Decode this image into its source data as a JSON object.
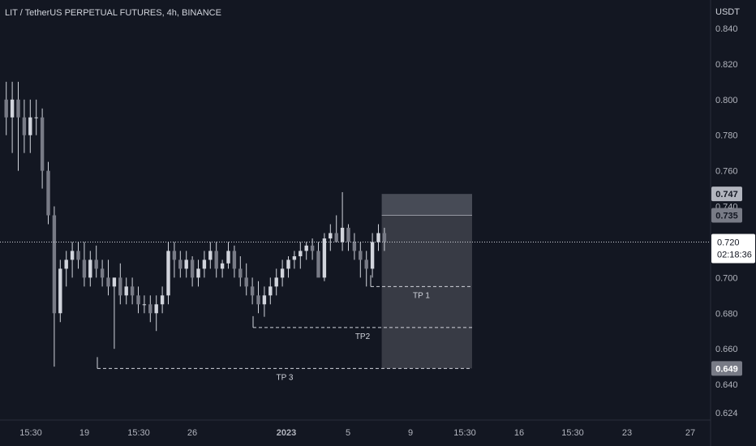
{
  "chart_data": {
    "type": "candlestick",
    "title": "LIT / TetherUS PERPETUAL FUTURES, 4h, BINANCE",
    "y_unit": "USDT",
    "y_ticks": [
      "0.840",
      "0.820",
      "0.800",
      "0.780",
      "0.760",
      "0.740",
      "0.720",
      "0.700",
      "0.680",
      "0.660",
      "0.640",
      "0.624"
    ],
    "x_ticks": [
      "15:30",
      "19",
      "15:30",
      "26",
      "2023",
      "5",
      "9",
      "15:30",
      "16",
      "15:30",
      "23",
      "27"
    ],
    "ylim": [
      0.62,
      0.845
    ],
    "grid": false,
    "price_series": [
      [
        1,
        0.8,
        0.81,
        0.78,
        0.79
      ],
      [
        2,
        0.79,
        0.81,
        0.77,
        0.8
      ],
      [
        3,
        0.8,
        0.81,
        0.76,
        0.79
      ],
      [
        4,
        0.79,
        0.8,
        0.77,
        0.78
      ],
      [
        5,
        0.78,
        0.8,
        0.77,
        0.79
      ],
      [
        6,
        0.79,
        0.8,
        0.78,
        0.79
      ],
      [
        7,
        0.79,
        0.795,
        0.75,
        0.76
      ],
      [
        8,
        0.76,
        0.765,
        0.73,
        0.735
      ],
      [
        9,
        0.735,
        0.74,
        0.65,
        0.68
      ],
      [
        10,
        0.68,
        0.71,
        0.675,
        0.705
      ],
      [
        11,
        0.705,
        0.715,
        0.695,
        0.71
      ],
      [
        12,
        0.71,
        0.72,
        0.7,
        0.715
      ],
      [
        13,
        0.715,
        0.72,
        0.705,
        0.71
      ],
      [
        14,
        0.71,
        0.72,
        0.695,
        0.7
      ],
      [
        15,
        0.7,
        0.715,
        0.695,
        0.71
      ],
      [
        16,
        0.71,
        0.718,
        0.7,
        0.705
      ],
      [
        17,
        0.705,
        0.71,
        0.695,
        0.7
      ],
      [
        18,
        0.7,
        0.71,
        0.69,
        0.695
      ],
      [
        19,
        0.695,
        0.7,
        0.66,
        0.7
      ],
      [
        20,
        0.7,
        0.708,
        0.685,
        0.69
      ],
      [
        21,
        0.69,
        0.7,
        0.685,
        0.695
      ],
      [
        22,
        0.695,
        0.7,
        0.685,
        0.69
      ],
      [
        23,
        0.69,
        0.695,
        0.68,
        0.685
      ],
      [
        24,
        0.685,
        0.69,
        0.68,
        0.685
      ],
      [
        25,
        0.685,
        0.69,
        0.675,
        0.68
      ],
      [
        26,
        0.68,
        0.69,
        0.67,
        0.685
      ],
      [
        27,
        0.685,
        0.695,
        0.68,
        0.69
      ],
      [
        28,
        0.69,
        0.72,
        0.685,
        0.715
      ],
      [
        29,
        0.715,
        0.72,
        0.7,
        0.71
      ],
      [
        30,
        0.71,
        0.715,
        0.7,
        0.705
      ],
      [
        31,
        0.705,
        0.715,
        0.7,
        0.71
      ],
      [
        32,
        0.71,
        0.712,
        0.695,
        0.7
      ],
      [
        33,
        0.7,
        0.71,
        0.695,
        0.705
      ],
      [
        34,
        0.705,
        0.715,
        0.7,
        0.71
      ],
      [
        35,
        0.71,
        0.72,
        0.705,
        0.715
      ],
      [
        36,
        0.715,
        0.72,
        0.7,
        0.705
      ],
      [
        37,
        0.705,
        0.71,
        0.7,
        0.708
      ],
      [
        38,
        0.708,
        0.72,
        0.705,
        0.715
      ],
      [
        39,
        0.715,
        0.718,
        0.7,
        0.705
      ],
      [
        40,
        0.705,
        0.712,
        0.695,
        0.7
      ],
      [
        41,
        0.7,
        0.708,
        0.69,
        0.695
      ],
      [
        42,
        0.695,
        0.7,
        0.685,
        0.69
      ],
      [
        43,
        0.69,
        0.698,
        0.68,
        0.685
      ],
      [
        44,
        0.685,
        0.695,
        0.678,
        0.69
      ],
      [
        45,
        0.69,
        0.7,
        0.685,
        0.695
      ],
      [
        46,
        0.695,
        0.705,
        0.69,
        0.7
      ],
      [
        47,
        0.7,
        0.71,
        0.695,
        0.705
      ],
      [
        48,
        0.705,
        0.712,
        0.7,
        0.71
      ],
      [
        49,
        0.71,
        0.715,
        0.705,
        0.712
      ],
      [
        50,
        0.712,
        0.72,
        0.705,
        0.715
      ],
      [
        51,
        0.715,
        0.72,
        0.71,
        0.718
      ],
      [
        52,
        0.718,
        0.722,
        0.71,
        0.715
      ],
      [
        53,
        0.715,
        0.72,
        0.705,
        0.7
      ],
      [
        54,
        0.7,
        0.725,
        0.698,
        0.722
      ],
      [
        55,
        0.722,
        0.73,
        0.715,
        0.725
      ],
      [
        56,
        0.725,
        0.735,
        0.72,
        0.72
      ],
      [
        57,
        0.72,
        0.748,
        0.715,
        0.728
      ],
      [
        58,
        0.728,
        0.73,
        0.715,
        0.72
      ],
      [
        59,
        0.72,
        0.725,
        0.71,
        0.715
      ],
      [
        60,
        0.715,
        0.72,
        0.7,
        0.71
      ],
      [
        61,
        0.71,
        0.715,
        0.695,
        0.705
      ],
      [
        62,
        0.705,
        0.725,
        0.7,
        0.72
      ],
      [
        63,
        0.72,
        0.73,
        0.715,
        0.725
      ],
      [
        64,
        0.725,
        0.728,
        0.715,
        0.72
      ]
    ],
    "current_price": {
      "label": "0.720",
      "countdown": "02:18:36",
      "value": 0.72
    },
    "price_marks": [
      {
        "label": "0.747",
        "value": 0.747
      },
      {
        "label": "0.735",
        "value": 0.735
      },
      {
        "label": "0.649",
        "value": 0.649
      }
    ],
    "annotations": [
      {
        "label": "TP 1",
        "value": 0.695,
        "x_start": 56,
        "x_end": 76
      },
      {
        "label": "TP2",
        "value": 0.672,
        "x_start": 40,
        "x_end": 76
      },
      {
        "label": "TP 3",
        "value": 0.649,
        "x_start": 19,
        "x_end": 76
      }
    ],
    "position_box": {
      "entry": 0.735,
      "top": 0.747,
      "bottom": 0.649,
      "x_start": 60,
      "x_end": 74
    }
  }
}
